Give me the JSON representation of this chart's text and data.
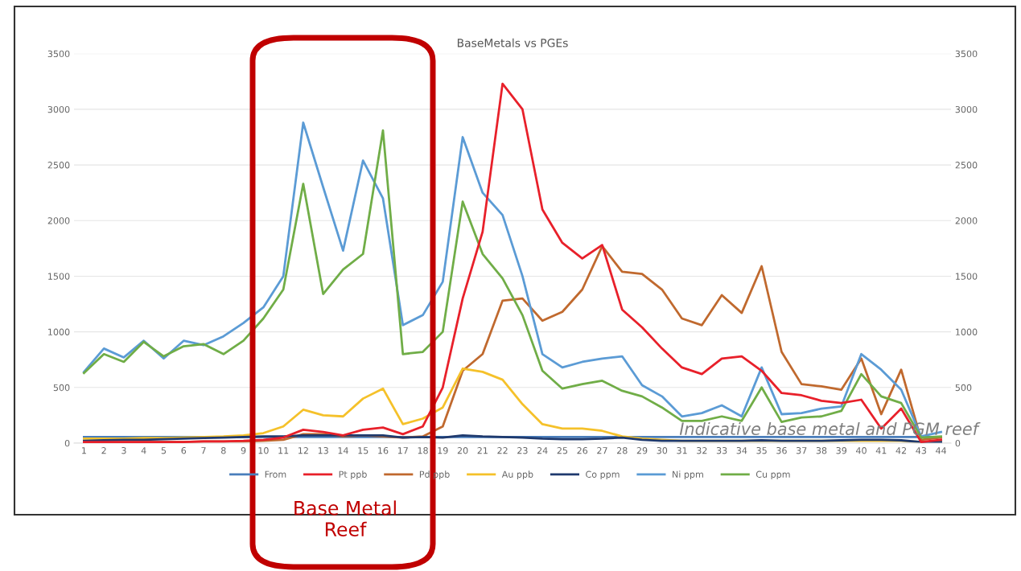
{
  "chart_data": {
    "type": "line",
    "title": "BaseMetals vs PGEs",
    "categories": [
      "1",
      "2",
      "3",
      "4",
      "5",
      "6",
      "7",
      "8",
      "9",
      "10",
      "11",
      "12",
      "13",
      "14",
      "15",
      "16",
      "17",
      "18",
      "19",
      "20",
      "21",
      "22",
      "23",
      "24",
      "25",
      "26",
      "27",
      "28",
      "29",
      "30",
      "31",
      "32",
      "33",
      "34",
      "35",
      "36",
      "37",
      "38",
      "39",
      "40",
      "41",
      "42",
      "43",
      "44"
    ],
    "series": [
      {
        "name": "From",
        "color": "#4a7ebb",
        "values": [
          55,
          55,
          55,
          55,
          55,
          55,
          55,
          55,
          55,
          55,
          55,
          55,
          55,
          55,
          55,
          55,
          55,
          55,
          55,
          55,
          55,
          55,
          55,
          55,
          55,
          55,
          55,
          55,
          55,
          55,
          55,
          55,
          55,
          55,
          55,
          55,
          55,
          55,
          55,
          55,
          55,
          55,
          55,
          55
        ]
      },
      {
        "name": "Pt ppb",
        "color": "#e8202a",
        "values": [
          10,
          10,
          10,
          10,
          10,
          10,
          15,
          15,
          20,
          30,
          50,
          120,
          100,
          70,
          120,
          140,
          80,
          150,
          500,
          1300,
          1900,
          3230,
          3000,
          2100,
          1800,
          1660,
          1780,
          1200,
          1040,
          850,
          680,
          620,
          760,
          780,
          650,
          450,
          430,
          380,
          360,
          390,
          130,
          310,
          10,
          30
        ]
      },
      {
        "name": "Pd ppb",
        "color": "#c0692e",
        "values": [
          10,
          10,
          10,
          10,
          10,
          10,
          15,
          15,
          15,
          20,
          30,
          80,
          80,
          60,
          70,
          60,
          50,
          60,
          150,
          650,
          800,
          1280,
          1300,
          1100,
          1180,
          1380,
          1770,
          1540,
          1520,
          1380,
          1120,
          1060,
          1330,
          1170,
          1590,
          820,
          530,
          510,
          480,
          760,
          260,
          660,
          30,
          50
        ]
      },
      {
        "name": "Au ppb",
        "color": "#f5c12a",
        "values": [
          40,
          40,
          40,
          45,
          45,
          50,
          55,
          60,
          70,
          90,
          150,
          300,
          250,
          240,
          400,
          490,
          170,
          220,
          320,
          670,
          640,
          570,
          350,
          170,
          130,
          130,
          110,
          60,
          40,
          30,
          20,
          20,
          20,
          20,
          20,
          20,
          20,
          20,
          20,
          20,
          20,
          20,
          10,
          10
        ]
      },
      {
        "name": "Co ppm",
        "color": "#1f3a6e",
        "values": [
          20,
          25,
          30,
          30,
          35,
          40,
          45,
          50,
          55,
          60,
          60,
          70,
          70,
          70,
          70,
          70,
          50,
          55,
          50,
          70,
          60,
          55,
          50,
          40,
          35,
          35,
          40,
          50,
          30,
          20,
          20,
          20,
          20,
          20,
          25,
          20,
          20,
          20,
          25,
          30,
          30,
          25,
          10,
          10
        ]
      },
      {
        "name": "Ni ppm",
        "color": "#5b9bd5",
        "values": [
          640,
          850,
          770,
          920,
          760,
          920,
          880,
          960,
          1080,
          1220,
          1500,
          2880,
          2300,
          1730,
          2540,
          2200,
          1060,
          1150,
          1450,
          2750,
          2250,
          2050,
          1500,
          800,
          680,
          730,
          760,
          780,
          520,
          420,
          240,
          270,
          340,
          240,
          680,
          260,
          270,
          310,
          330,
          800,
          660,
          480,
          60,
          100
        ]
      },
      {
        "name": "Cu ppm",
        "color": "#70ad47",
        "values": [
          630,
          800,
          730,
          910,
          780,
          870,
          890,
          800,
          920,
          1120,
          1380,
          2330,
          1340,
          1560,
          1700,
          2810,
          800,
          820,
          1000,
          2170,
          1700,
          1480,
          1150,
          650,
          490,
          530,
          560,
          470,
          420,
          320,
          200,
          200,
          240,
          200,
          500,
          190,
          230,
          240,
          290,
          620,
          420,
          360,
          50,
          60
        ]
      }
    ],
    "ylim": [
      0,
      3500
    ],
    "yticks": [
      0,
      500,
      1000,
      1500,
      2000,
      2500,
      3000,
      3500
    ],
    "y2lim": [
      0,
      3500
    ],
    "y2ticks": [
      0,
      500,
      1000,
      1500,
      2000,
      2500,
      3000,
      3500
    ],
    "grid": "y",
    "legend": "bottom",
    "marker": "none",
    "line_style": "solid",
    "annotations": [
      "Base Metal\nReef",
      "Indicative base metal and PGM reef"
    ]
  }
}
